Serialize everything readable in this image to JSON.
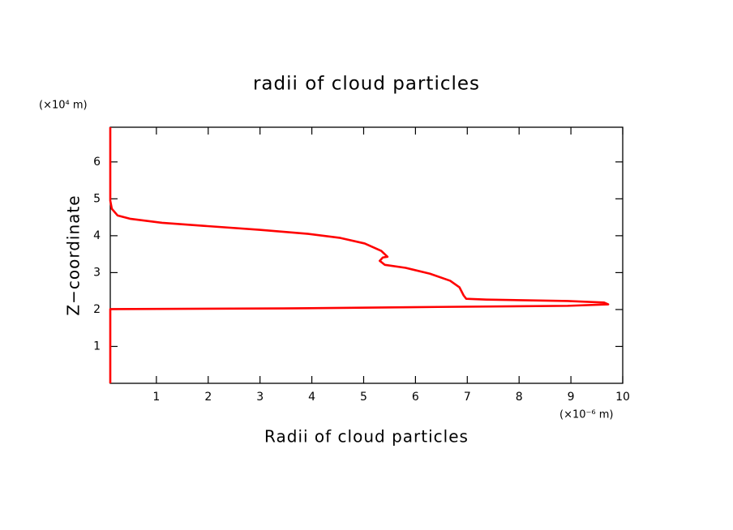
{
  "chart_data": {
    "type": "line",
    "title": "radii of cloud particles",
    "x_label": "Radii of cloud particles",
    "y_label": "Z−coordinate",
    "x_unit": "(×10⁻⁶ m)",
    "y_unit": "(×10⁴ m)",
    "x": [
      0.11,
      0.11,
      3.46,
      6.43,
      8.94,
      9.72,
      9.64,
      8.94,
      7.37,
      6.98,
      6.93,
      6.85,
      6.67,
      6.28,
      5.81,
      5.41,
      5.31,
      5.37,
      5.46,
      5.34,
      5.02,
      4.55,
      3.93,
      2.99,
      1.89,
      1.11,
      0.49,
      0.25,
      0.14,
      0.11,
      0.11
    ],
    "series": [
      {
        "color": "#ff0000",
        "values": [
          0,
          2.01,
          2.03,
          2.07,
          2.1,
          2.14,
          2.19,
          2.23,
          2.27,
          2.29,
          2.38,
          2.6,
          2.78,
          2.97,
          3.13,
          3.21,
          3.32,
          3.41,
          3.43,
          3.59,
          3.79,
          3.94,
          4.05,
          4.16,
          4.27,
          4.35,
          4.46,
          4.55,
          4.73,
          4.95,
          6.94
        ]
      }
    ],
    "xlim": [
      0.11,
      10
    ],
    "ylim": [
      0,
      6.94
    ],
    "xticks": [
      1,
      2,
      3,
      4,
      5,
      6,
      7,
      8,
      9,
      10
    ],
    "yticks": [
      1,
      2,
      3,
      4,
      5,
      6
    ]
  }
}
